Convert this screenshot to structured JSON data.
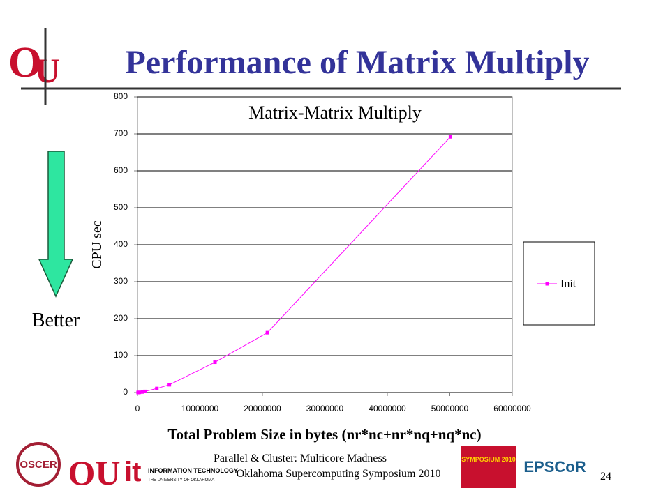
{
  "slide": {
    "title": "Performance of Matrix Multiply",
    "arrow_label": "Better",
    "footer": {
      "line1": "Parallel & Cluster: Multicore Madness",
      "line2": "Oklahoma Supercomputing Symposium 2010",
      "page": "24"
    },
    "logos": {
      "oscer": "OSCER",
      "it": "INFORMATION TECHNOLOGY",
      "it_sub": "THE UNIVERSITY OF OKLAHOMA",
      "symposium": "SYMPOSIUM 2010",
      "epscor": "EPSCoR"
    }
  },
  "chart_data": {
    "type": "line",
    "title": "Matrix-Matrix Multiply",
    "ylabel": "CPU sec",
    "xlabel": "Total Problem Size in bytes (nr*nc+nr*nq+nq*nc)",
    "x": [
      100000,
      300000,
      800000,
      1200000,
      3100000,
      5100000,
      12400000,
      20800000,
      50100000
    ],
    "series": [
      {
        "name": "Init",
        "color": "#ff00ff",
        "values": [
          0.1,
          0.5,
          1.5,
          3,
          11,
          21,
          82,
          162,
          692
        ]
      }
    ],
    "xlim": [
      0,
      60000000
    ],
    "xticks": [
      0,
      10000000,
      20000000,
      30000000,
      40000000,
      50000000,
      60000000
    ],
    "ylim": [
      0,
      800
    ],
    "yticks": [
      0,
      100,
      200,
      300,
      400,
      500,
      600,
      700,
      800
    ],
    "grid": true,
    "legend": "right"
  }
}
